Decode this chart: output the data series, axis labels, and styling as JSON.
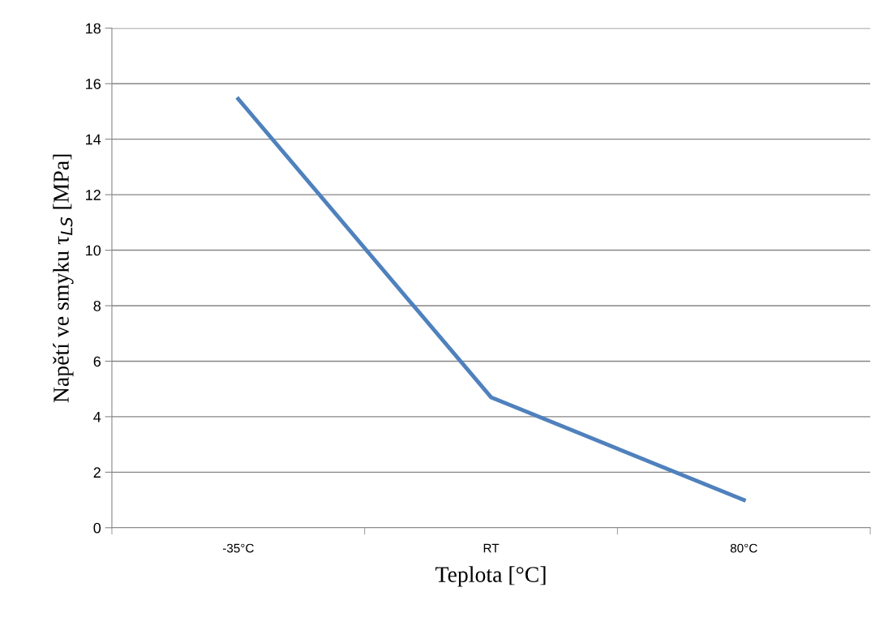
{
  "chart_data": {
    "type": "line",
    "xlabel": "Teplota [°C]",
    "ylabel": "Napětí ve smyku τ$_{LS}$ [MPa]",
    "categories": [
      "-35°C",
      "RT",
      "80°C"
    ],
    "series": [
      {
        "color": "#4f81bd",
        "values": [
          15.45,
          4.7,
          1.0
        ]
      }
    ],
    "ylim": [
      0,
      18
    ],
    "yticks": [
      0,
      2,
      4,
      6,
      8,
      10,
      12,
      14,
      16,
      18
    ],
    "grid": "y",
    "marker": "none",
    "line_style": "solid",
    "legend": false
  }
}
